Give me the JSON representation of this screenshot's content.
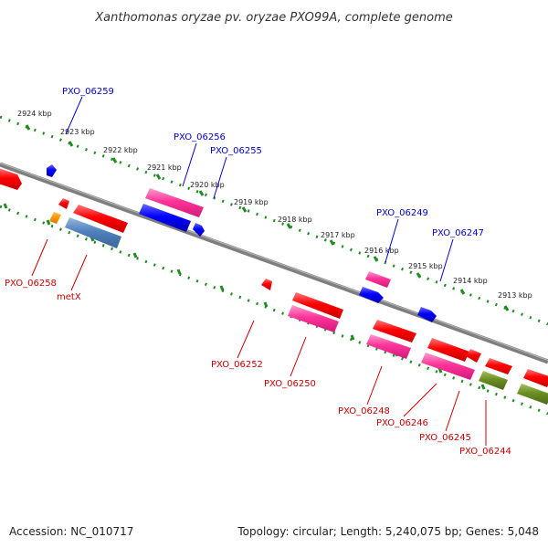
{
  "title": "Xanthomonas oryzae pv. oryzae PXO99A, complete genome",
  "footer": {
    "accession": "Accession: NC_010717",
    "summary": "Topology: circular; Length: 5,240,075 bp; Genes: 5,048"
  },
  "colors": {
    "backbone": "#7f7f7f",
    "tick_dots": "#1e8c1e",
    "label_plus": "#0000cc",
    "label_minus": "#cc0000",
    "gene_red": "#ff0000",
    "gene_pink": "#ff3399",
    "gene_blue": "#0000ff",
    "gene_steelblue": "#4f81bd",
    "gene_olive": "#6b8e23",
    "gene_orange": "#ff9900"
  },
  "kbp_labels": [
    "2924 kbp",
    "2923 kbp",
    "2922 kbp",
    "2921 kbp",
    "2920 kbp",
    "2919 kbp",
    "2918 kbp",
    "2917 kbp",
    "2916 kbp",
    "2915 kbp",
    "2914 kbp",
    "2913 kbp"
  ],
  "gene_labels": {
    "plus": [
      "PXO_06259",
      "PXO_06256",
      "PXO_06255",
      "PXO_06249",
      "PXO_06247"
    ],
    "minus": [
      "PXO_06258",
      "metX",
      "PXO_06252",
      "PXO_06250",
      "PXO_06248",
      "PXO_06246",
      "PXO_06245",
      "PXO_06244"
    ]
  }
}
